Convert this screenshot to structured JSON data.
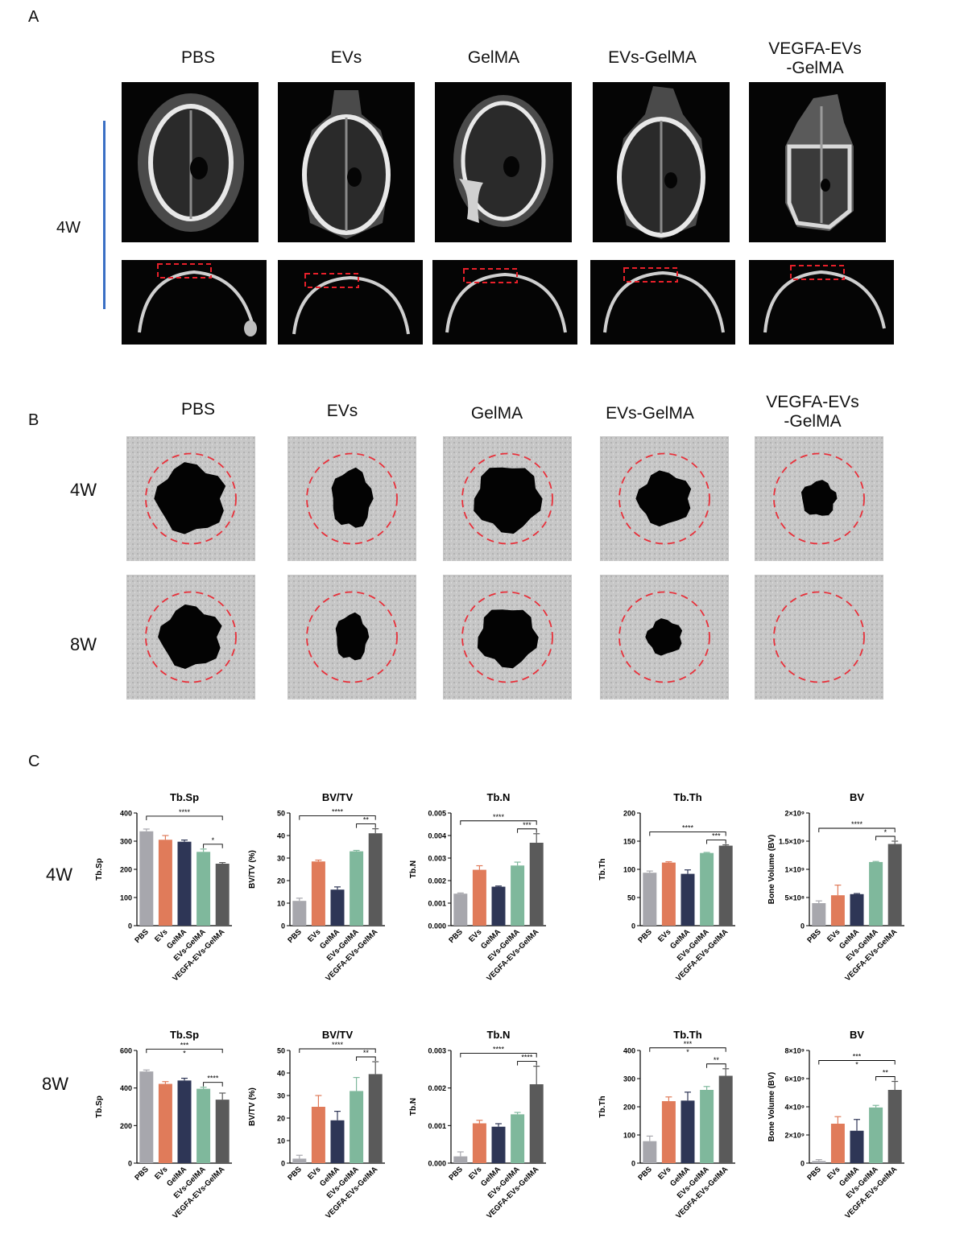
{
  "panels": {
    "A": {
      "letter": "A",
      "groups": [
        "PBS",
        "EVs",
        "GelMA",
        "EVs-GelMA",
        "VEGFA-EVs\n-GelMA"
      ],
      "row_label": "4W"
    },
    "B": {
      "letter": "B",
      "groups": [
        "PBS",
        "EVs",
        "GelMA",
        "EVs-GelMA",
        "VEGFA-EVs\n-GelMA"
      ],
      "row_labels": [
        "4W",
        "8W"
      ],
      "defect_fraction": {
        "4W": [
          0.75,
          0.55,
          0.7,
          0.45,
          0.2
        ],
        "8W": [
          0.6,
          0.35,
          0.55,
          0.2,
          0.0
        ]
      }
    },
    "C": {
      "letter": "C",
      "row_labels": [
        "4W",
        "8W"
      ]
    }
  },
  "colors": {
    "PBS": "#a7a7ad",
    "EVs": "#e07b5a",
    "GelMA": "#2e3656",
    "EVs-GelMA": "#7fb89c",
    "VEGFA-EVs-GelMA": "#5a5a5a",
    "dashed_circle": "#e8303a",
    "dashed_box": "#e8202a",
    "timeline_bar": "#3a6fc4"
  },
  "chart_data": [
    {
      "type": "bar",
      "row": "4W",
      "title": "Tb.Sp",
      "ylabel": "Tb.Sp",
      "categories": [
        "PBS",
        "EVs",
        "GelMA",
        "EVs-GelMA",
        "VEGFA-EVs-GelMA"
      ],
      "values": [
        335,
        305,
        298,
        262,
        220
      ],
      "errors": [
        8,
        15,
        6,
        10,
        4
      ],
      "ylim": [
        0,
        400
      ],
      "yticks": [
        "0",
        "100",
        "200",
        "300",
        "400"
      ],
      "significance": [
        {
          "from": 0,
          "to": 4,
          "label": "****",
          "level": 1
        },
        {
          "from": 3,
          "to": 4,
          "label": "*",
          "level": 0
        }
      ]
    },
    {
      "type": "bar",
      "row": "4W",
      "title": "BV/TV",
      "ylabel": "BV/TV (%)",
      "categories": [
        "PBS",
        "EVs",
        "GelMA",
        "EVs-GelMA",
        "VEGFA-EVs-GelMA"
      ],
      "values": [
        11,
        28.5,
        16,
        33,
        41
      ],
      "errors": [
        1.2,
        0.6,
        1.2,
        0.4,
        2
      ],
      "ylim": [
        0,
        50
      ],
      "yticks": [
        "0",
        "10",
        "20",
        "30",
        "40",
        "50"
      ],
      "significance": [
        {
          "from": 0,
          "to": 4,
          "label": "****",
          "level": 1
        },
        {
          "from": 3,
          "to": 4,
          "label": "**",
          "level": 0
        }
      ]
    },
    {
      "type": "bar",
      "row": "4W",
      "title": "Tb.N",
      "ylabel": "Tb.N",
      "categories": [
        "PBS",
        "EVs",
        "GelMA",
        "EVs-GelMA",
        "VEGFA-EVs-GelMA"
      ],
      "values": [
        0.00142,
        0.00248,
        0.00173,
        0.00267,
        0.00368
      ],
      "errors": [
        3e-05,
        0.00018,
        3e-05,
        0.00015,
        0.0004
      ],
      "ylim": [
        0,
        0.005
      ],
      "yticks": [
        "0.000",
        "0.001",
        "0.002",
        "0.003",
        "0.004",
        "0.005"
      ],
      "significance": [
        {
          "from": 0,
          "to": 4,
          "label": "****",
          "level": 1
        },
        {
          "from": 3,
          "to": 4,
          "label": "***",
          "level": 0
        }
      ]
    },
    {
      "type": "bar",
      "row": "4W",
      "title": "Tb.Th",
      "ylabel": "Tb.Th",
      "categories": [
        "PBS",
        "EVs",
        "GelMA",
        "EVs-GelMA",
        "VEGFA-EVs-GelMA"
      ],
      "values": [
        94,
        112,
        92,
        129,
        142
      ],
      "errors": [
        3,
        1.5,
        7,
        1,
        1.5
      ],
      "ylim": [
        0,
        200
      ],
      "yticks": [
        "0",
        "50",
        "100",
        "150",
        "200"
      ],
      "significance": [
        {
          "from": 0,
          "to": 4,
          "label": "****",
          "level": 1
        },
        {
          "from": 3,
          "to": 4,
          "label": "***",
          "level": 0
        }
      ]
    },
    {
      "type": "bar",
      "row": "4W",
      "title": "BV",
      "ylabel": "Bone Volume (BV)",
      "categories": [
        "PBS",
        "EVs",
        "GelMA",
        "EVs-GelMA",
        "VEGFA-EVs-GelMA"
      ],
      "values": [
        400000000.0,
        540000000.0,
        560000000.0,
        1130000000.0,
        1450000000.0
      ],
      "errors": [
        40000000.0,
        180000000.0,
        10000000.0,
        10000000.0,
        50000000.0
      ],
      "ylim": [
        0,
        2000000000.0
      ],
      "yticks": [
        "0",
        "5×10⁸",
        "1×10⁹",
        "1.5×10⁹",
        "2×10⁹"
      ],
      "significance": [
        {
          "from": 0,
          "to": 4,
          "label": "****",
          "level": 1
        },
        {
          "from": 3,
          "to": 4,
          "label": "*",
          "level": 0
        }
      ]
    },
    {
      "type": "bar",
      "row": "8W",
      "title": "Tb.Sp",
      "ylabel": "Tb.Sp",
      "categories": [
        "PBS",
        "EVs",
        "GelMA",
        "EVs-GelMA",
        "VEGFA-EVs-GelMA"
      ],
      "values": [
        488,
        422,
        440,
        396,
        338
      ],
      "errors": [
        8,
        12,
        12,
        8,
        35
      ],
      "ylim": [
        0,
        600
      ],
      "yticks": [
        "0",
        "200",
        "400",
        "600"
      ],
      "significance": [
        {
          "from": 0,
          "to": 4,
          "label": "***",
          "level": 2
        },
        {
          "from": 0,
          "to": 4,
          "label": "*",
          "level": 1,
          "textonly": true
        },
        {
          "from": 3,
          "to": 4,
          "label": "****",
          "level": 0
        }
      ]
    },
    {
      "type": "bar",
      "row": "8W",
      "title": "BV/TV",
      "ylabel": "BV/TV (%)",
      "categories": [
        "PBS",
        "EVs",
        "GelMA",
        "EVs-GelMA",
        "VEGFA-EVs-GelMA"
      ],
      "values": [
        2,
        25,
        19,
        32,
        39.5
      ],
      "errors": [
        1.5,
        5,
        4,
        6,
        5.5
      ],
      "ylim": [
        0,
        50
      ],
      "yticks": [
        "0",
        "10",
        "20",
        "30",
        "40",
        "50"
      ],
      "significance": [
        {
          "from": 0,
          "to": 4,
          "label": "****",
          "level": 1
        },
        {
          "from": 3,
          "to": 4,
          "label": "**",
          "level": 0
        }
      ]
    },
    {
      "type": "bar",
      "row": "8W",
      "title": "Tb.N",
      "ylabel": "Tb.N",
      "categories": [
        "PBS",
        "EVs",
        "GelMA",
        "EVs-GelMA",
        "VEGFA-EVs-GelMA"
      ],
      "values": [
        0.00018,
        0.00106,
        0.00097,
        0.0013,
        0.0021
      ],
      "errors": [
        0.00012,
        8e-05,
        8e-05,
        5e-05,
        0.00048
      ],
      "ylim": [
        0,
        0.003
      ],
      "yticks": [
        "0.000",
        "0.001",
        "0.002",
        "0.003"
      ],
      "significance": [
        {
          "from": 0,
          "to": 4,
          "label": "****",
          "level": 1
        },
        {
          "from": 3,
          "to": 4,
          "label": "****",
          "level": 0
        }
      ]
    },
    {
      "type": "bar",
      "row": "8W",
      "title": "Tb.Th",
      "ylabel": "Tb.Th",
      "categories": [
        "PBS",
        "EVs",
        "GelMA",
        "EVs-GelMA",
        "VEGFA-EVs-GelMA"
      ],
      "values": [
        78,
        220,
        222,
        260,
        310
      ],
      "errors": [
        18,
        15,
        30,
        12,
        25
      ],
      "ylim": [
        0,
        400
      ],
      "yticks": [
        "0",
        "100",
        "200",
        "300",
        "400"
      ],
      "significance": [
        {
          "from": 0,
          "to": 4,
          "label": "***",
          "level": 2
        },
        {
          "from": 0,
          "to": 4,
          "label": "*",
          "level": 1,
          "textonly": true
        },
        {
          "from": 3,
          "to": 4,
          "label": "**",
          "level": 0
        }
      ]
    },
    {
      "type": "bar",
      "row": "8W",
      "title": "BV",
      "ylabel": "Bone Volume (BV)",
      "categories": [
        "PBS",
        "EVs",
        "GelMA",
        "EVs-GelMA",
        "VEGFA-EVs-GelMA"
      ],
      "values": [
        150000000.0,
        2800000000.0,
        2300000000.0,
        3950000000.0,
        5200000000.0
      ],
      "errors": [
        100000000.0,
        500000000.0,
        800000000.0,
        150000000.0,
        600000000.0
      ],
      "ylim": [
        0,
        8000000000.0
      ],
      "yticks": [
        "0",
        "2×10⁹",
        "4×10⁹",
        "6×10⁹",
        "8×10⁹"
      ],
      "significance": [
        {
          "from": 0,
          "to": 4,
          "label": "***",
          "level": 2
        },
        {
          "from": 0,
          "to": 4,
          "label": "*",
          "level": 1,
          "textonly": true
        },
        {
          "from": 3,
          "to": 4,
          "label": "**",
          "level": 0
        }
      ]
    }
  ]
}
